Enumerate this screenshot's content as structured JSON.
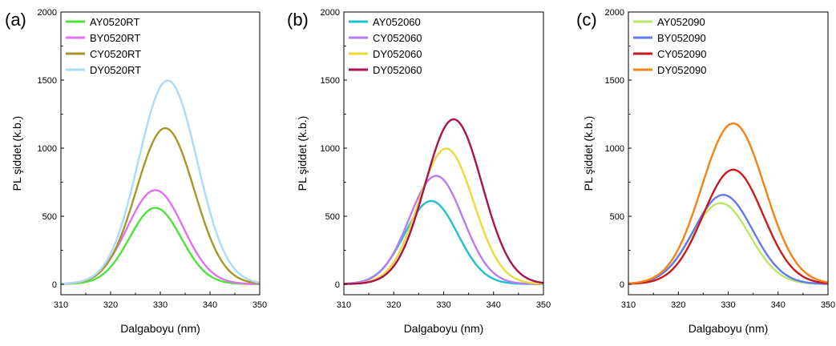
{
  "chart_data": [
    {
      "type": "line",
      "panel_label": "(a)",
      "xlabel": "Dalgaboyu (nm)",
      "ylabel": "PL şiddet (k.b.)",
      "xlim": [
        310,
        350
      ],
      "ylim": [
        0,
        2000
      ],
      "xticks": [
        310,
        320,
        330,
        340,
        350
      ],
      "yticks": [
        0,
        500,
        1000,
        1500,
        2000
      ],
      "legend_position": "top-left",
      "series": [
        {
          "name": "AY0520RT",
          "color": "#4de33a",
          "peak_x": 329.0,
          "peak_y": 560,
          "width": 5.2,
          "x": [
            310,
            312,
            314,
            316,
            318,
            320,
            322,
            324,
            326,
            328,
            329,
            330,
            332,
            334,
            336,
            338,
            340,
            342,
            344,
            346,
            348,
            350
          ],
          "y": [
            2,
            8,
            20,
            45,
            100,
            190,
            300,
            410,
            500,
            550,
            560,
            552,
            500,
            400,
            290,
            185,
            105,
            55,
            25,
            12,
            6,
            3
          ]
        },
        {
          "name": "BY0520RT",
          "color": "#e070f0",
          "peak_x": 329.0,
          "peak_y": 690,
          "width": 5.6,
          "x": [
            310,
            312,
            314,
            316,
            318,
            320,
            322,
            324,
            326,
            328,
            329,
            330,
            332,
            334,
            336,
            338,
            340,
            342,
            344,
            346,
            348,
            350
          ],
          "y": [
            4,
            15,
            40,
            90,
            170,
            280,
            410,
            540,
            640,
            685,
            690,
            682,
            620,
            510,
            380,
            255,
            150,
            80,
            38,
            17,
            8,
            4
          ]
        },
        {
          "name": "CY0520RT",
          "color": "#a8962a",
          "peak_x": 331.0,
          "peak_y": 1145,
          "width": 5.8,
          "x": [
            310,
            312,
            314,
            316,
            318,
            320,
            322,
            324,
            326,
            328,
            330,
            331,
            332,
            334,
            336,
            338,
            340,
            342,
            344,
            346,
            348,
            350
          ],
          "y": [
            5,
            18,
            45,
            100,
            190,
            320,
            490,
            680,
            870,
            1030,
            1130,
            1145,
            1135,
            1050,
            890,
            690,
            480,
            300,
            165,
            80,
            35,
            15
          ]
        },
        {
          "name": "DY0520RT",
          "color": "#a8dcf8",
          "peak_x": 331.5,
          "peak_y": 1495,
          "width": 5.9,
          "x": [
            310,
            312,
            314,
            316,
            318,
            320,
            322,
            324,
            326,
            328,
            330,
            331.5,
            332,
            334,
            336,
            338,
            340,
            342,
            344,
            346,
            348,
            350
          ],
          "y": [
            6,
            20,
            55,
            120,
            230,
            390,
            600,
            850,
            1100,
            1330,
            1470,
            1495,
            1490,
            1410,
            1220,
            960,
            680,
            440,
            250,
            125,
            55,
            22
          ]
        }
      ]
    },
    {
      "type": "line",
      "panel_label": "(b)",
      "xlabel": "Dalgaboyu (nm)",
      "ylabel": "PL şiddet (k.b.)",
      "xlim": [
        310,
        350
      ],
      "ylim": [
        0,
        2000
      ],
      "xticks": [
        310,
        320,
        330,
        340,
        350
      ],
      "yticks": [
        0,
        500,
        1000,
        1500,
        2000
      ],
      "legend_position": "top-left",
      "series": [
        {
          "name": "AY052060",
          "color": "#1fc2c8",
          "peak_x": 327.5,
          "peak_y": 610,
          "width": 5.3,
          "x": [
            310,
            312,
            314,
            316,
            318,
            320,
            322,
            324,
            326,
            327.5,
            328,
            330,
            332,
            334,
            336,
            338,
            340,
            342,
            344,
            346,
            348,
            350
          ],
          "y": [
            5,
            18,
            45,
            100,
            190,
            310,
            440,
            545,
            600,
            610,
            605,
            560,
            460,
            340,
            220,
            125,
            65,
            30,
            12,
            5,
            2,
            1
          ]
        },
        {
          "name": "CY052060",
          "color": "#b67cf0",
          "peak_x": 328.5,
          "peak_y": 795,
          "width": 5.4,
          "x": [
            310,
            312,
            314,
            316,
            318,
            320,
            322,
            324,
            326,
            328,
            328.5,
            330,
            332,
            334,
            336,
            338,
            340,
            342,
            344,
            346,
            348,
            350
          ],
          "y": [
            4,
            15,
            40,
            90,
            180,
            310,
            470,
            630,
            750,
            792,
            795,
            770,
            680,
            540,
            380,
            235,
            130,
            65,
            28,
            11,
            4,
            2
          ]
        },
        {
          "name": "DY052060",
          "color": "#ecd93a",
          "peak_x": 330.5,
          "peak_y": 995,
          "width": 5.5,
          "x": [
            310,
            312,
            314,
            316,
            318,
            320,
            322,
            324,
            326,
            328,
            330,
            330.5,
            332,
            334,
            336,
            338,
            340,
            342,
            344,
            346,
            348,
            350
          ],
          "y": [
            3,
            12,
            32,
            75,
            155,
            280,
            450,
            640,
            820,
            950,
            992,
            995,
            960,
            830,
            640,
            440,
            270,
            150,
            75,
            33,
            14,
            5
          ]
        },
        {
          "name": "DY052060",
          "color": "#a8124e",
          "peak_x": 332.0,
          "peak_y": 1210,
          "width": 5.7,
          "x": [
            310,
            312,
            314,
            316,
            318,
            320,
            322,
            324,
            326,
            328,
            330,
            332,
            334,
            336,
            338,
            340,
            342,
            344,
            346,
            348,
            350
          ],
          "y": [
            4,
            14,
            38,
            90,
            180,
            320,
            510,
            730,
            940,
            1110,
            1200,
            1210,
            1130,
            950,
            720,
            490,
            300,
            165,
            80,
            35,
            14
          ]
        }
      ]
    },
    {
      "type": "line",
      "panel_label": "(c)",
      "xlabel": "Dalgaboyu (nm)",
      "ylabel": "PL şiddet (k.b.)",
      "xlim": [
        310,
        350
      ],
      "ylim": [
        0,
        2000
      ],
      "xticks": [
        310,
        320,
        330,
        340,
        350
      ],
      "yticks": [
        0,
        500,
        1000,
        1500,
        2000
      ],
      "legend_position": "top-left",
      "series": [
        {
          "name": "AY052090",
          "color": "#b8e868",
          "peak_x": 328.5,
          "peak_y": 595,
          "width": 5.8,
          "x": [
            310,
            312,
            314,
            316,
            318,
            320,
            322,
            324,
            326,
            328,
            328.5,
            330,
            332,
            334,
            336,
            338,
            340,
            342,
            344,
            346,
            348,
            350
          ],
          "y": [
            8,
            25,
            60,
            120,
            210,
            320,
            440,
            530,
            585,
            595,
            594,
            575,
            500,
            390,
            270,
            170,
            95,
            48,
            22,
            10,
            4,
            2
          ]
        },
        {
          "name": "BY052090",
          "color": "#6478f0",
          "peak_x": 329.0,
          "peak_y": 655,
          "width": 5.9,
          "x": [
            310,
            312,
            314,
            316,
            318,
            320,
            322,
            324,
            326,
            328,
            329,
            330,
            332,
            334,
            336,
            338,
            340,
            342,
            344,
            346,
            348,
            350
          ],
          "y": [
            8,
            25,
            60,
            120,
            215,
            330,
            460,
            570,
            640,
            654,
            655,
            645,
            580,
            470,
            340,
            220,
            130,
            68,
            32,
            14,
            6,
            2
          ]
        },
        {
          "name": "CY052090",
          "color": "#c81a1a",
          "peak_x": 331.0,
          "peak_y": 840,
          "width": 6.0,
          "x": [
            310,
            312,
            314,
            316,
            318,
            320,
            322,
            324,
            326,
            328,
            330,
            331,
            332,
            334,
            336,
            338,
            340,
            342,
            344,
            346,
            348,
            350
          ],
          "y": [
            7,
            22,
            55,
            115,
            210,
            340,
            490,
            640,
            760,
            830,
            838,
            840,
            832,
            760,
            630,
            470,
            320,
            195,
            105,
            52,
            24,
            10
          ]
        },
        {
          "name": "DY052090",
          "color": "#f58214",
          "peak_x": 331.0,
          "peak_y": 1180,
          "width": 6.3,
          "x": [
            310,
            312,
            314,
            316,
            318,
            320,
            322,
            324,
            326,
            328,
            330,
            331,
            332,
            334,
            336,
            338,
            340,
            342,
            344,
            346,
            348,
            350
          ],
          "y": [
            6,
            20,
            50,
            110,
            210,
            350,
            540,
            750,
            950,
            1110,
            1175,
            1180,
            1170,
            1070,
            900,
            690,
            480,
            300,
            165,
            82,
            36,
            14
          ]
        }
      ]
    }
  ]
}
